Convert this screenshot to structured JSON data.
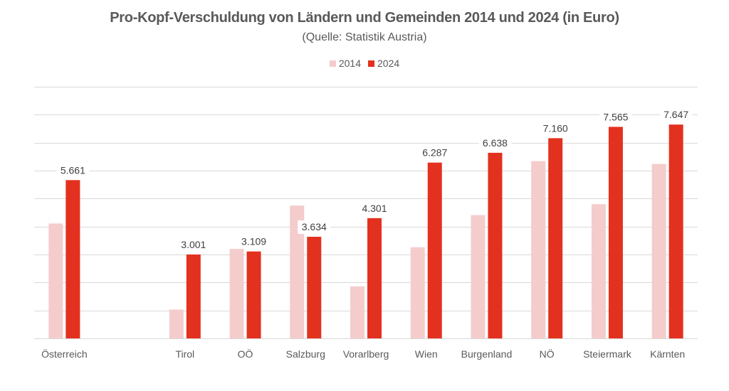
{
  "chart_data": {
    "type": "bar",
    "title": "Pro-Kopf-Verschuldung von Ländern und Gemeinden 2014 und 2024 (in Euro)",
    "subtitle": "(Quelle: Statistik Austria)",
    "xlabel": "",
    "ylabel": "",
    "ylim": [
      0,
      9000
    ],
    "grid": true,
    "gridline_step": 1000,
    "y_tick_labels_shown": false,
    "legend_position": "top-center",
    "categories": [
      "Österreich",
      "",
      "Tirol",
      "OÖ",
      "Salzburg",
      "Vorarlberg",
      "Wien",
      "Burgenland",
      "NÖ",
      "Steiermark",
      "Kärnten"
    ],
    "series": [
      {
        "name": "2014",
        "color": "#f4cccc",
        "values": [
          4110,
          null,
          1030,
          3200,
          4750,
          1860,
          3260,
          4410,
          6340,
          4800,
          6240
        ],
        "data_labels": [
          null,
          null,
          null,
          null,
          null,
          null,
          null,
          null,
          null,
          null,
          null
        ]
      },
      {
        "name": "2024",
        "color": "#e3311f",
        "values": [
          5661,
          null,
          3001,
          3109,
          3634,
          4301,
          6287,
          6638,
          7160,
          7565,
          7647
        ],
        "data_labels": [
          "5.661",
          null,
          "3.001",
          "3.109",
          "3.634",
          "4.301",
          "6.287",
          "6.638",
          "7.160",
          "7.565",
          "7.647"
        ]
      }
    ]
  },
  "colors": {
    "text": "#595959",
    "gridline": "#d9d9d9",
    "label_text": "#404040"
  }
}
